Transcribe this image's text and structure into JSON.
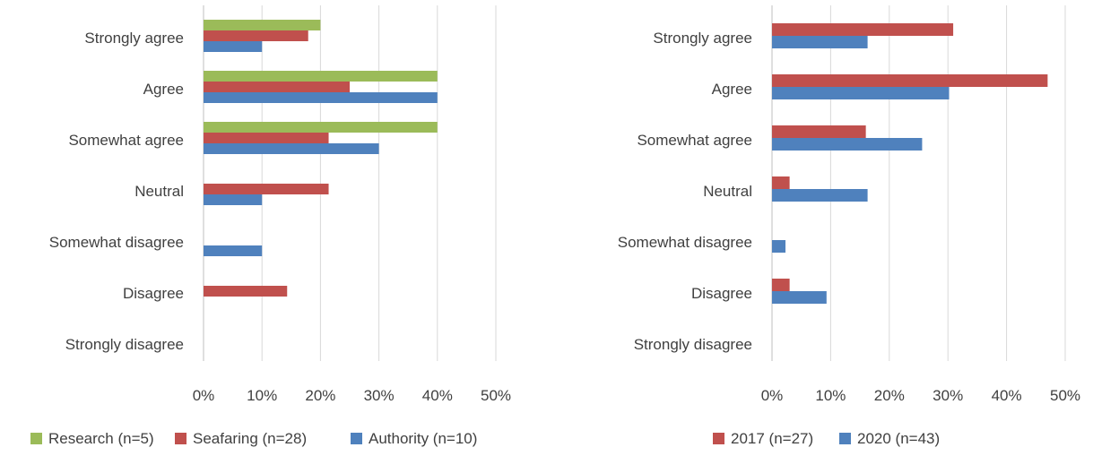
{
  "chart_data": [
    {
      "type": "bar",
      "orientation": "horizontal",
      "categories": [
        "Strongly agree",
        "Agree",
        "Somewhat agree",
        "Neutral",
        "Somewhat disagree",
        "Disagree",
        "Strongly disagree"
      ],
      "series": [
        {
          "name": "Research (n=5)",
          "color": "#9bbb59",
          "values": [
            20,
            40,
            40,
            0,
            0,
            0,
            0
          ]
        },
        {
          "name": "Seafaring (n=28)",
          "color": "#c0504d",
          "values": [
            17.9,
            25,
            21.4,
            21.4,
            0,
            14.3,
            0
          ]
        },
        {
          "name": "Authority (n=10)",
          "color": "#4f81bd",
          "values": [
            10,
            40,
            30,
            10,
            10,
            0,
            0
          ]
        }
      ],
      "xlim": [
        0,
        50
      ],
      "xticks": [
        "0%",
        "10%",
        "20%",
        "30%",
        "40%",
        "50%"
      ],
      "grid": true,
      "legend": "bottom"
    },
    {
      "type": "bar",
      "orientation": "horizontal",
      "categories": [
        "Strongly agree",
        "Agree",
        "Somewhat agree",
        "Neutral",
        "Somewhat disagree",
        "Disagree",
        "Strongly disagree"
      ],
      "series": [
        {
          "name": "2017 (n=27)",
          "color": "#c0504d",
          "values": [
            30.9,
            47,
            16,
            3,
            0,
            3,
            0
          ]
        },
        {
          "name": "2020 (n=43)",
          "color": "#4f81bd",
          "values": [
            16.3,
            30.2,
            25.6,
            16.3,
            2.3,
            9.3,
            0
          ]
        }
      ],
      "xlim": [
        0,
        50
      ],
      "xticks": [
        "0%",
        "10%",
        "20%",
        "30%",
        "40%",
        "50%"
      ],
      "grid": true,
      "legend": "bottom"
    }
  ]
}
